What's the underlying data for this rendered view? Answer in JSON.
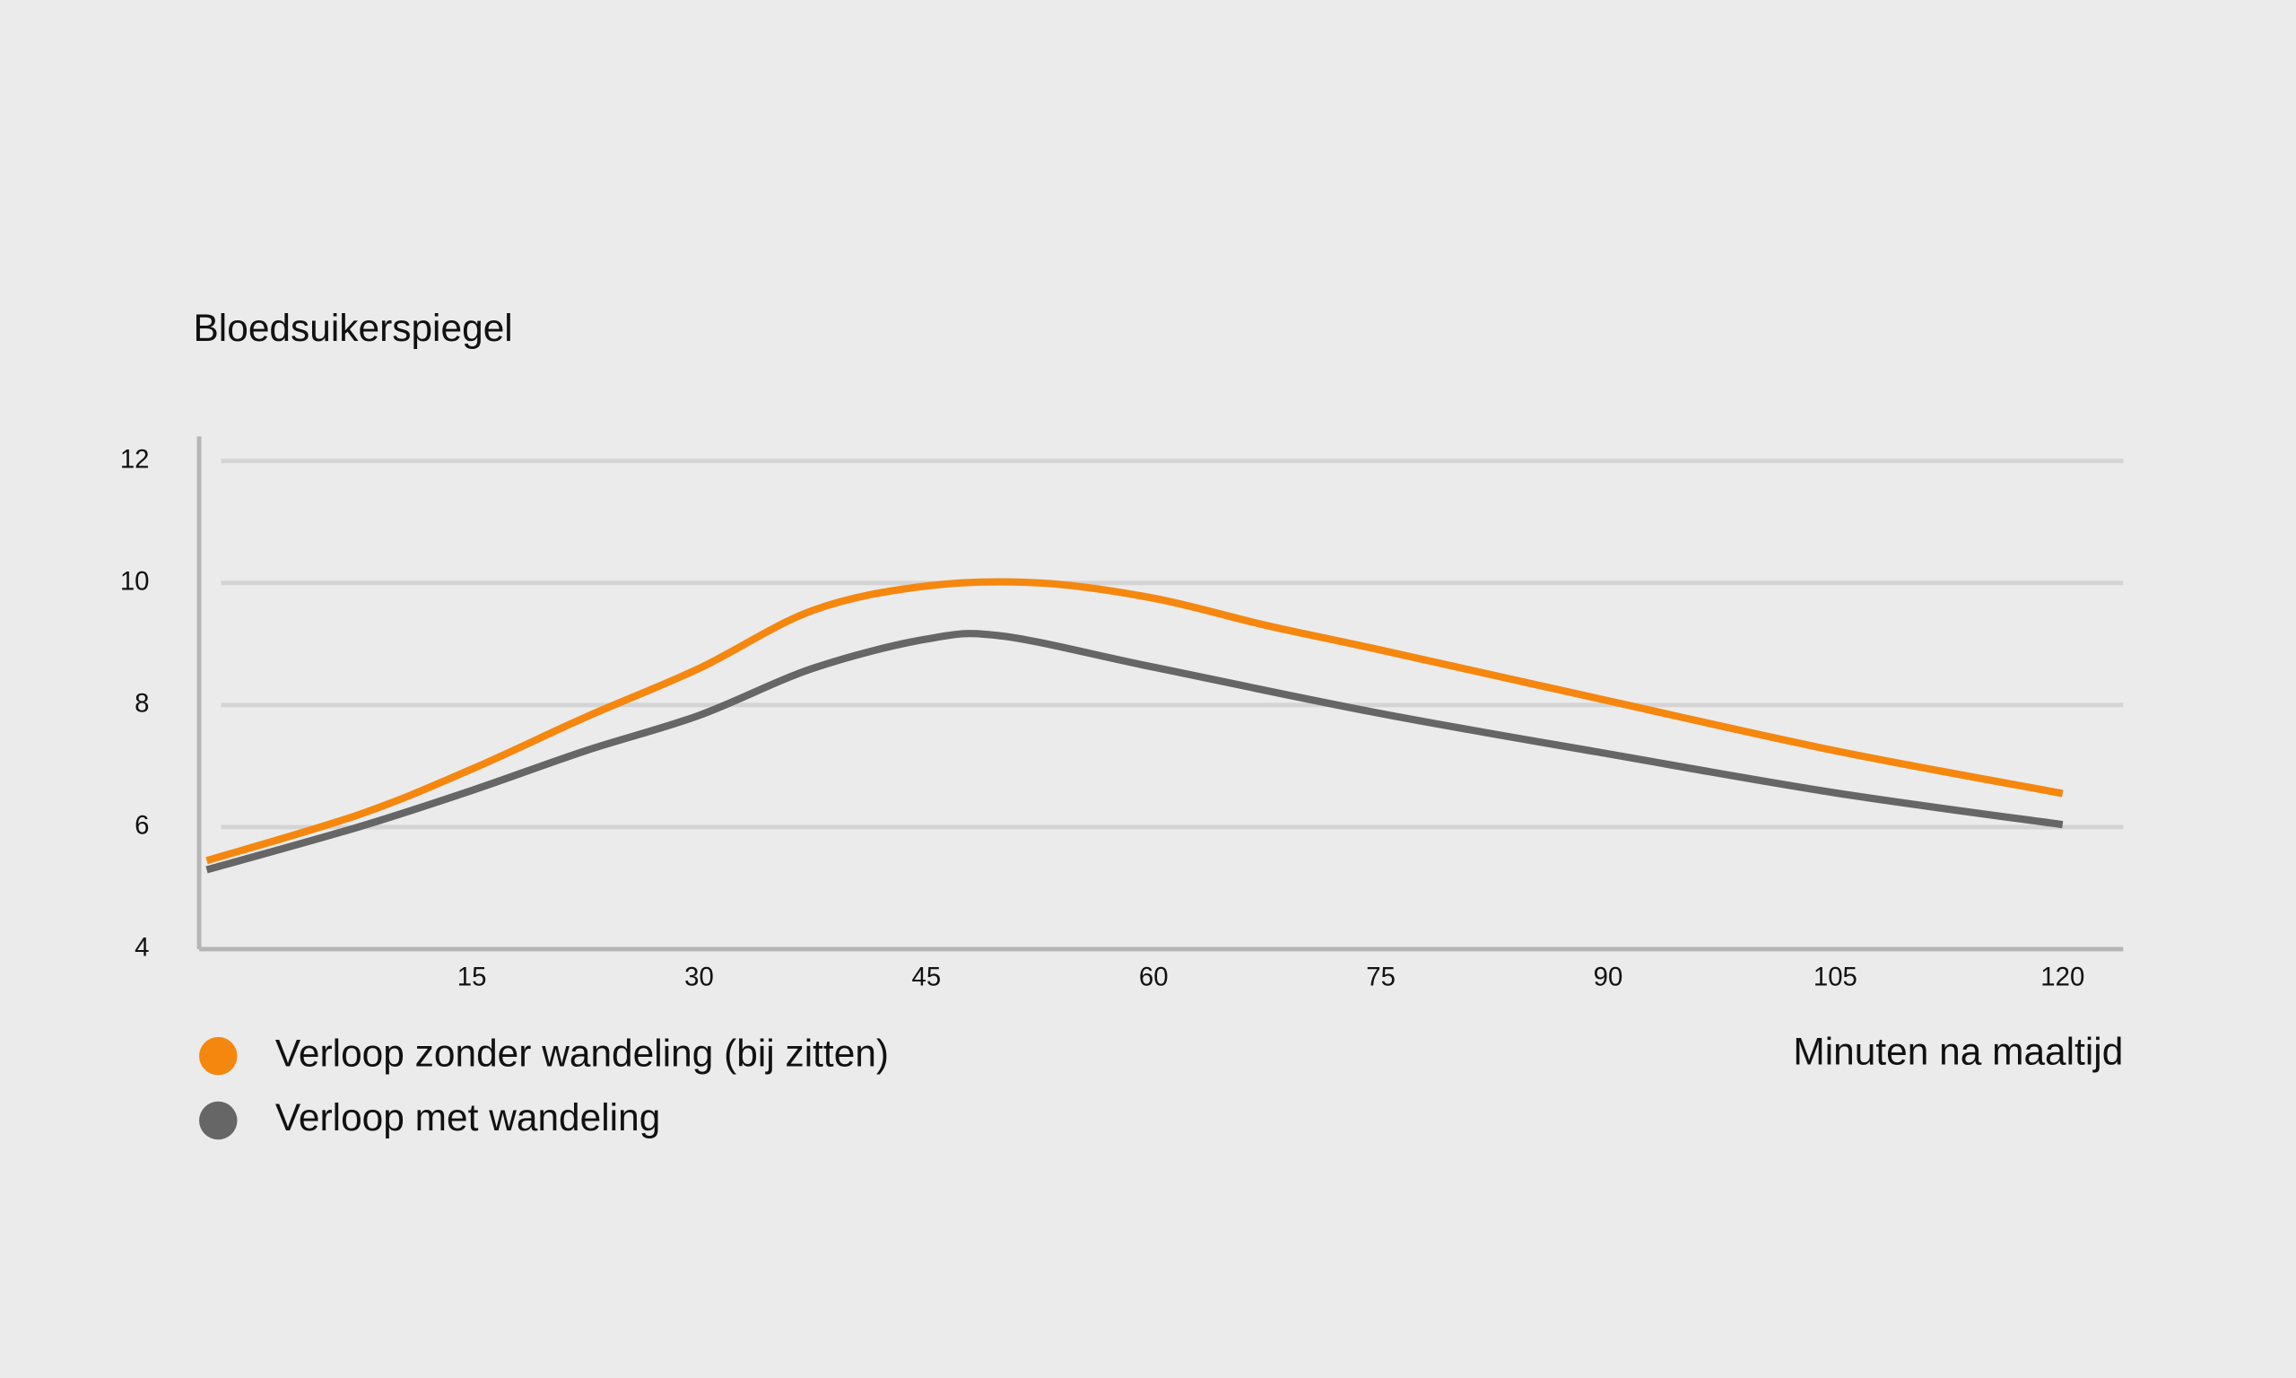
{
  "chart_data": {
    "type": "line",
    "y_label": "Bloedsuikerspiegel",
    "x_label": "Minuten na maaltijd",
    "xlim": [
      -3,
      124
    ],
    "xticks": [
      15,
      30,
      45,
      60,
      75,
      90,
      105,
      120
    ],
    "ylim": [
      4,
      12.4
    ],
    "yticks": [
      4,
      6,
      8,
      10,
      12
    ],
    "grid": true,
    "legend": "bottom-left",
    "series": [
      {
        "name": "Verloop zonder wandeling (bij zitten)",
        "color": "#f5870f",
        "x": [
          -2.5,
          7.5,
          15,
          22.5,
          30,
          37.5,
          45,
          52.5,
          60,
          67.5,
          75,
          90,
          105,
          120
        ],
        "values": [
          5.45,
          6.2,
          6.95,
          7.8,
          8.6,
          9.55,
          9.95,
          10.0,
          9.75,
          9.3,
          8.9,
          8.07,
          7.25,
          6.55
        ]
      },
      {
        "name": "Verloop met wandeling",
        "color": "#666666",
        "x": [
          -2.5,
          7.5,
          15,
          22.5,
          30,
          37.5,
          45,
          50,
          60,
          75,
          90,
          105,
          120
        ],
        "values": [
          5.3,
          6.0,
          6.6,
          7.25,
          7.83,
          8.6,
          9.08,
          9.13,
          8.62,
          7.86,
          7.2,
          6.56,
          6.04
        ]
      }
    ]
  }
}
